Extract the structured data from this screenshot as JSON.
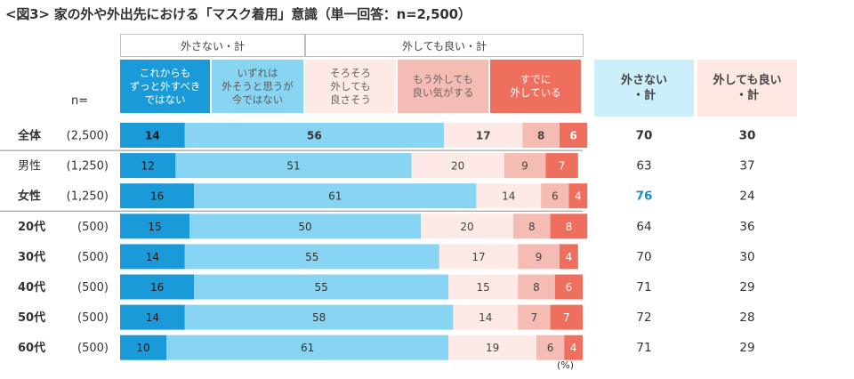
{
  "title": "<図3> 家の外や外出先における「マスク着用」意識（単一回答：n=2,500）",
  "n_label": "n=",
  "pct_unit": "(%)",
  "groups": [
    {
      "label": "外さない・計"
    },
    {
      "label": "外しても良い・計"
    }
  ],
  "summary_headers": [
    "外さない\n・計",
    "外しても良い\n・計"
  ],
  "colors": {
    "cat1": "#1a9ad9",
    "cat2": "#88d4f3",
    "cat3": "#fdeae6",
    "cat4": "#f5bcb3",
    "cat5": "#ef6f5f",
    "sum1_bg": "#cdeefb",
    "sum2_bg": "#fde7e3",
    "highlight": "#1a8fce"
  },
  "chart_data": {
    "type": "bar",
    "orientation": "horizontal",
    "stacked": true,
    "title": "<図3> 家の外や外出先における「マスク着用」意識（単一回答：n=2,500）",
    "categories_rows": [
      {
        "label": "全体",
        "n": "(2,500)"
      },
      {
        "label": "男性",
        "n": "(1,250)"
      },
      {
        "label": "女性",
        "n": "(1,250)"
      },
      {
        "label": "20代",
        "n": "(500)"
      },
      {
        "label": "30代",
        "n": "(500)"
      },
      {
        "label": "40代",
        "n": "(500)"
      },
      {
        "label": "50代",
        "n": "(500)"
      },
      {
        "label": "60代",
        "n": "(500)"
      }
    ],
    "series": [
      {
        "name": "これからも\nずっと外すべき\nではない",
        "values": [
          14,
          12,
          16,
          15,
          14,
          16,
          14,
          10
        ]
      },
      {
        "name": "いずれは\n外そうと思うが\n今ではない",
        "values": [
          56,
          51,
          61,
          50,
          55,
          55,
          58,
          61
        ]
      },
      {
        "name": "そろそろ\n外しても\n良さそう",
        "values": [
          17,
          20,
          14,
          20,
          17,
          15,
          14,
          19
        ]
      },
      {
        "name": "もう外しても\n良い気がする",
        "values": [
          8,
          9,
          6,
          8,
          9,
          8,
          7,
          6
        ]
      },
      {
        "name": "すでに\n外している",
        "values": [
          6,
          7,
          4,
          8,
          4,
          6,
          7,
          4
        ]
      }
    ],
    "totals": {
      "keep_on": [
        70,
        63,
        76,
        64,
        70,
        71,
        72,
        71
      ],
      "can_remove": [
        30,
        37,
        24,
        36,
        30,
        29,
        28,
        29
      ]
    },
    "highlight_cell": {
      "row": 2,
      "column": "keep_on"
    },
    "bold_rows": [
      0,
      2,
      3,
      4,
      5,
      6,
      7
    ],
    "xlim": [
      0,
      100
    ],
    "unit": "%"
  }
}
